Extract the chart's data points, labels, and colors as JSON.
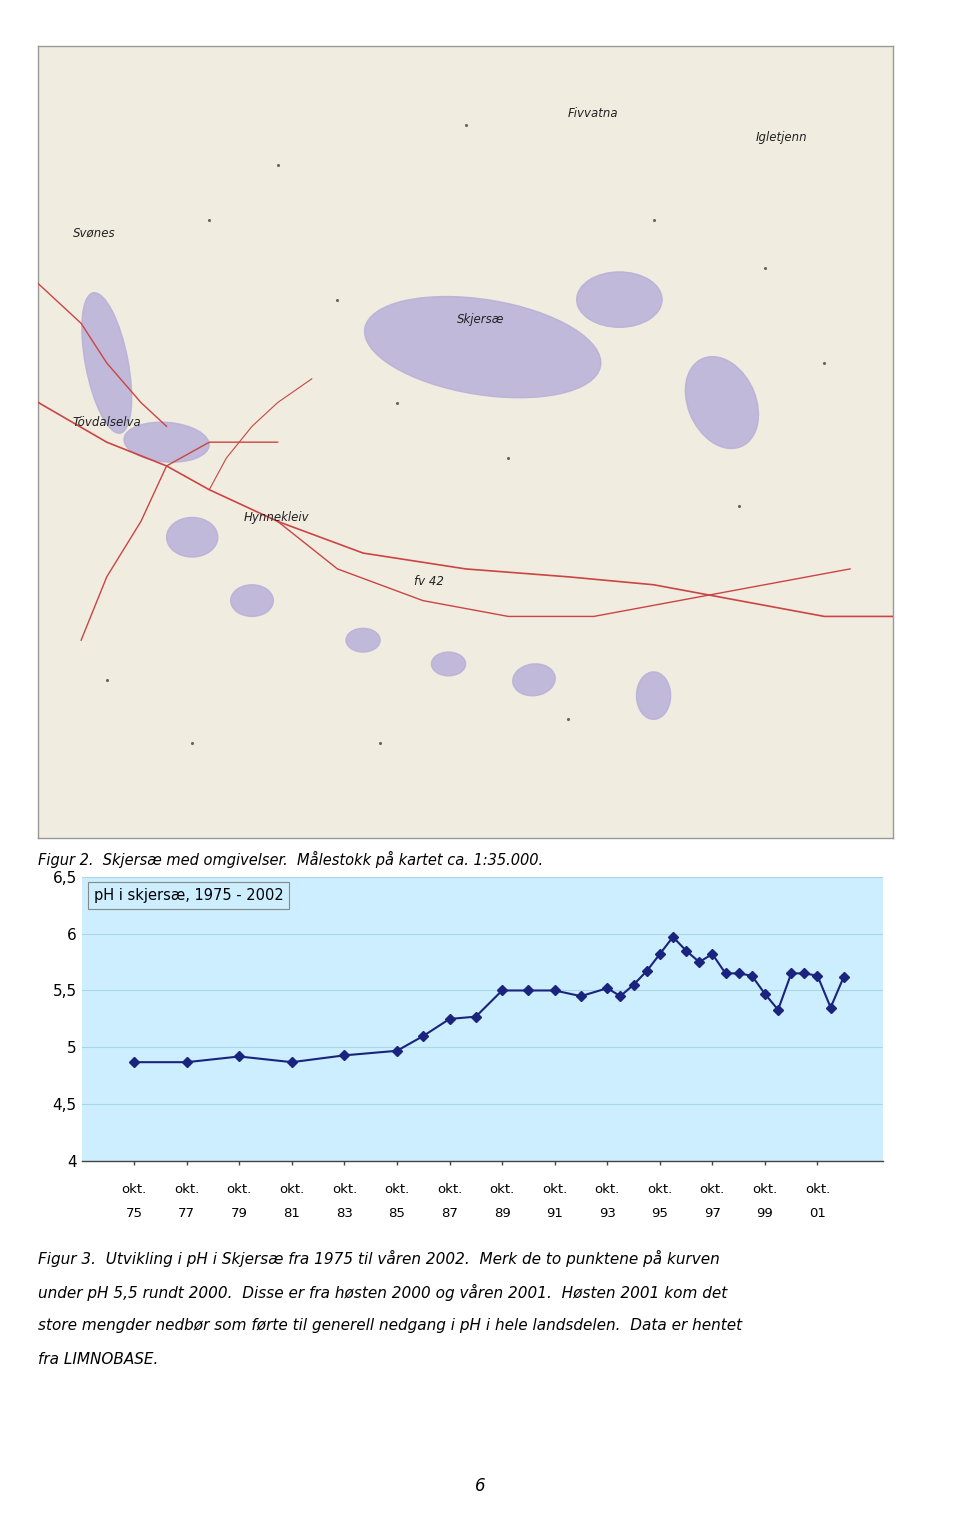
{
  "title": "pH i skjersæ, 1975 - 2002",
  "x_positions": [
    1975,
    1977,
    1979,
    1981,
    1983,
    1985,
    1987,
    1989,
    1991,
    1993,
    1995,
    1997,
    1999,
    2001
  ],
  "xlabels_bot": [
    "75",
    "77",
    "79",
    "81",
    "83",
    "85",
    "87",
    "89",
    "91",
    "93",
    "95",
    "97",
    "99",
    "01"
  ],
  "years": [
    1975,
    1977,
    1979,
    1981,
    1983,
    1985,
    1986,
    1987,
    1988,
    1989,
    1990,
    1991,
    1992,
    1993,
    1993.5,
    1994,
    1994.5,
    1995,
    1995.5,
    1996,
    1996.5,
    1997,
    1997.5,
    1998,
    1998.5,
    1999,
    1999.5,
    2000,
    2000.5,
    2001,
    2001.5,
    2002
  ],
  "ph_values": [
    4.87,
    4.87,
    4.92,
    4.87,
    4.93,
    4.97,
    5.1,
    5.25,
    5.27,
    5.5,
    5.5,
    5.5,
    5.45,
    5.52,
    5.45,
    5.55,
    5.67,
    5.82,
    5.97,
    5.85,
    5.75,
    5.82,
    5.65,
    5.65,
    5.63,
    5.47,
    5.33,
    5.65,
    5.65,
    5.63,
    5.35,
    5.62
  ],
  "ylim": [
    4.0,
    6.5
  ],
  "yticks": [
    4.0,
    4.5,
    5.0,
    5.5,
    6.0,
    6.5
  ],
  "ytick_labels": [
    "4",
    "4,5",
    "5",
    "5,5",
    "6",
    "6,5"
  ],
  "line_color": "#1a237e",
  "marker_color": "#1a237e",
  "chart_bg_color": "#cceeff",
  "fig_bg": "#ffffff",
  "legend_text": "pH i skjersæ, 1975 - 2002",
  "caption_fig2": "Figur 2.  Skjersæ med omgivelser.  Målestokk på kartet ca. 1:35.000.",
  "caption_fig3_line1": "Figur 3.  Utvikling i pH i Skjersæ fra 1975 til våren 2002.  Merk de to punktene på kurven",
  "caption_fig3_line2": "under pH 5,5 rundt 2000.  Disse er fra høsten 2000 og våren 2001.  Høsten 2001 kom det",
  "caption_fig3_line3": "store mengder nedbør som førte til generell nedgang i pH i hele landsdelen.  Data er hentet",
  "caption_fig3_line4": "fra LIMNOBASE.",
  "page_number": "6",
  "map_bg": "#f0ede0",
  "map_border": "#999999",
  "map_water_color": "#b8b0d8",
  "map_road_color": "#cc4444"
}
